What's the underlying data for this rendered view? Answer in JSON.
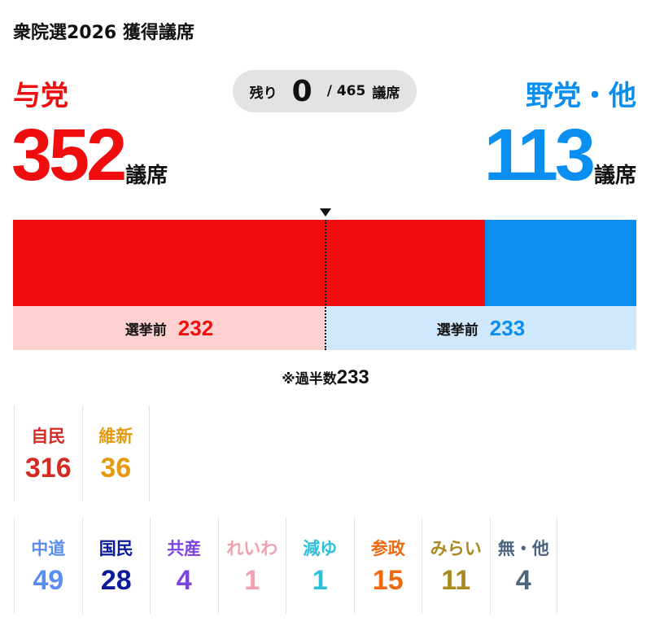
{
  "title": "衆院選2026 獲得議席",
  "ruling": {
    "label": "与党",
    "seats": "352",
    "unit": "議席",
    "before_label": "選挙前",
    "before": "232",
    "color": "#f00d0d",
    "fraction": 0.757
  },
  "opposition": {
    "label": "野党・他",
    "seats": "113",
    "unit": "議席",
    "before_label": "選挙前",
    "before": "233",
    "color": "#0a8ef0"
  },
  "remaining": {
    "label": "残り",
    "value": "0",
    "total": "/ 465",
    "unit": "議席"
  },
  "majority": {
    "label": "※過半数",
    "value": "233"
  },
  "parties_row1": [
    {
      "name": "自民",
      "seats": "316",
      "color": "#d42a24"
    },
    {
      "name": "維新",
      "seats": "36",
      "color": "#e39a0e"
    }
  ],
  "parties_row2": [
    {
      "name": "中道",
      "seats": "49",
      "color": "#5a8cf2"
    },
    {
      "name": "国民",
      "seats": "28",
      "color": "#0a1a9a"
    },
    {
      "name": "共産",
      "seats": "4",
      "color": "#7a44dd"
    },
    {
      "name": "れいわ",
      "seats": "1",
      "color": "#f0a0b0"
    },
    {
      "name": "減ゆ",
      "seats": "1",
      "color": "#2ec0d8"
    },
    {
      "name": "参政",
      "seats": "15",
      "color": "#ee6a10"
    },
    {
      "name": "みらい",
      "seats": "11",
      "color": "#a88a20"
    },
    {
      "name": "無・他",
      "seats": "4",
      "color": "#4d6480"
    }
  ]
}
